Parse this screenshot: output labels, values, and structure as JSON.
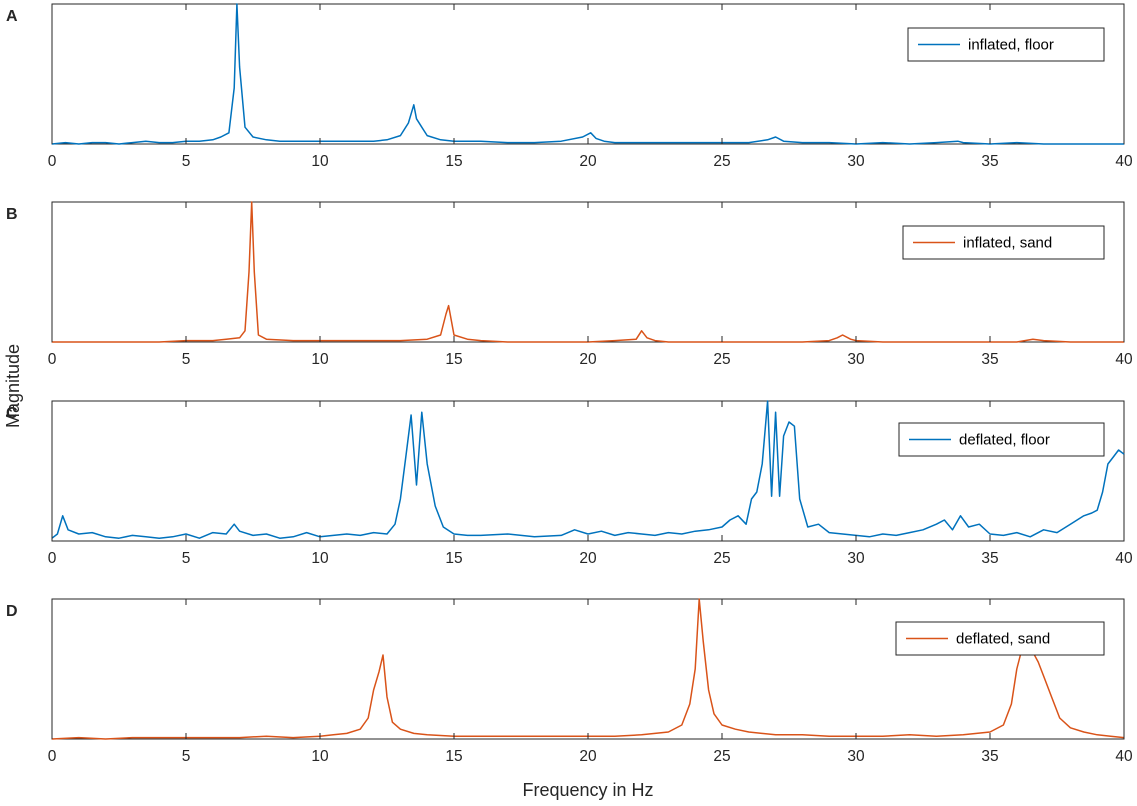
{
  "figure": {
    "xlabel": "Frequency in Hz",
    "ylabel": "Magnitude"
  },
  "chart_data": [
    {
      "type": "line",
      "panel": "A",
      "series": [
        {
          "name": "inflated, floor",
          "color": "#0072BD",
          "x": [
            0,
            0.5,
            1,
            1.5,
            2,
            2.5,
            3,
            3.5,
            4,
            4.5,
            5,
            5.5,
            6,
            6.3,
            6.6,
            6.8,
            6.9,
            7.0,
            7.2,
            7.5,
            8,
            8.5,
            9,
            10,
            11,
            12,
            12.5,
            13,
            13.3,
            13.5,
            13.6,
            13.8,
            14,
            14.5,
            15,
            16,
            17,
            18,
            19,
            19.8,
            20.1,
            20.3,
            20.6,
            21,
            22,
            23,
            24,
            25,
            26,
            26.7,
            27,
            27.3,
            28,
            29,
            30,
            31,
            32,
            33,
            33.8,
            34,
            35,
            36,
            37,
            38,
            39,
            40
          ],
          "values": [
            0.0,
            0.01,
            0.0,
            0.01,
            0.01,
            0.0,
            0.01,
            0.02,
            0.01,
            0.01,
            0.02,
            0.02,
            0.03,
            0.05,
            0.08,
            0.4,
            1.0,
            0.55,
            0.12,
            0.05,
            0.03,
            0.02,
            0.02,
            0.02,
            0.02,
            0.02,
            0.03,
            0.06,
            0.15,
            0.28,
            0.18,
            0.12,
            0.06,
            0.03,
            0.02,
            0.02,
            0.01,
            0.01,
            0.02,
            0.05,
            0.08,
            0.04,
            0.02,
            0.01,
            0.01,
            0.01,
            0.01,
            0.01,
            0.01,
            0.03,
            0.05,
            0.02,
            0.01,
            0.01,
            0.0,
            0.01,
            0.0,
            0.01,
            0.02,
            0.01,
            0.0,
            0.01,
            0.0,
            0.0,
            0.0,
            0.0
          ]
        }
      ],
      "xlim": [
        0,
        40
      ],
      "ylim": [
        0,
        1
      ],
      "xticks": [
        "0",
        "5",
        "10",
        "15",
        "20",
        "25",
        "30",
        "35",
        "40"
      ],
      "legend": "top-right"
    },
    {
      "type": "line",
      "panel": "B",
      "series": [
        {
          "name": "inflated, sand",
          "color": "#D95319",
          "x": [
            0,
            1,
            2,
            3,
            4,
            5,
            6,
            6.5,
            7,
            7.2,
            7.35,
            7.45,
            7.55,
            7.7,
            8,
            9,
            10,
            11,
            12,
            13,
            14,
            14.5,
            14.7,
            14.8,
            15,
            15.5,
            16,
            17,
            18,
            19,
            20,
            21,
            21.8,
            22,
            22.2,
            22.5,
            23,
            24,
            25,
            26,
            27,
            28,
            29,
            29.3,
            29.5,
            29.8,
            30,
            31,
            32,
            33,
            34,
            35,
            36,
            36.6,
            37,
            38,
            39,
            40
          ],
          "values": [
            0.0,
            0.0,
            0.0,
            0.0,
            0.0,
            0.01,
            0.01,
            0.02,
            0.03,
            0.08,
            0.5,
            1.0,
            0.5,
            0.05,
            0.02,
            0.01,
            0.01,
            0.01,
            0.01,
            0.01,
            0.02,
            0.05,
            0.2,
            0.26,
            0.05,
            0.02,
            0.01,
            0.0,
            0.0,
            0.0,
            0.0,
            0.01,
            0.02,
            0.08,
            0.03,
            0.01,
            0.0,
            0.0,
            0.0,
            0.0,
            0.0,
            0.0,
            0.01,
            0.03,
            0.05,
            0.02,
            0.01,
            0.0,
            0.0,
            0.0,
            0.0,
            0.0,
            0.0,
            0.02,
            0.01,
            0.0,
            0.0,
            0.0
          ]
        }
      ],
      "xlim": [
        0,
        40
      ],
      "ylim": [
        0,
        1
      ],
      "xticks": [
        "0",
        "5",
        "10",
        "15",
        "20",
        "25",
        "30",
        "35",
        "40"
      ],
      "legend": "top-right"
    },
    {
      "type": "line",
      "panel": "C",
      "series": [
        {
          "name": "deflated, floor",
          "color": "#0072BD",
          "x": [
            0,
            0.2,
            0.4,
            0.6,
            1,
            1.5,
            2,
            2.5,
            3,
            3.5,
            4,
            4.5,
            5,
            5.5,
            6,
            6.5,
            6.8,
            7,
            7.5,
            8,
            8.5,
            9,
            9.5,
            10,
            10.5,
            11,
            11.5,
            12,
            12.5,
            12.8,
            13,
            13.2,
            13.4,
            13.6,
            13.8,
            14,
            14.3,
            14.6,
            15,
            15.5,
            16,
            17,
            18,
            19,
            19.5,
            20,
            20.5,
            21,
            21.5,
            22,
            22.5,
            23,
            23.5,
            24,
            24.5,
            25,
            25.3,
            25.6,
            25.9,
            26.1,
            26.3,
            26.5,
            26.7,
            26.85,
            27.0,
            27.15,
            27.3,
            27.5,
            27.7,
            27.9,
            28.2,
            28.6,
            29,
            29.5,
            30,
            30.5,
            31,
            31.5,
            32,
            32.5,
            33,
            33.3,
            33.6,
            33.9,
            34.2,
            34.6,
            35,
            35.5,
            36,
            36.5,
            37,
            37.5,
            38,
            38.5,
            38.8,
            39.0,
            39.2,
            39.4,
            39.6,
            39.8,
            40
          ],
          "values": [
            0.02,
            0.05,
            0.18,
            0.08,
            0.05,
            0.06,
            0.03,
            0.02,
            0.04,
            0.03,
            0.02,
            0.03,
            0.05,
            0.02,
            0.06,
            0.05,
            0.12,
            0.07,
            0.04,
            0.05,
            0.02,
            0.03,
            0.06,
            0.03,
            0.04,
            0.05,
            0.04,
            0.06,
            0.05,
            0.12,
            0.3,
            0.6,
            0.9,
            0.4,
            0.92,
            0.55,
            0.25,
            0.1,
            0.05,
            0.04,
            0.04,
            0.05,
            0.03,
            0.04,
            0.08,
            0.05,
            0.07,
            0.04,
            0.06,
            0.05,
            0.04,
            0.06,
            0.05,
            0.07,
            0.08,
            0.1,
            0.15,
            0.18,
            0.12,
            0.3,
            0.35,
            0.55,
            1.0,
            0.32,
            0.92,
            0.32,
            0.75,
            0.85,
            0.82,
            0.3,
            0.1,
            0.12,
            0.06,
            0.05,
            0.04,
            0.03,
            0.05,
            0.04,
            0.06,
            0.08,
            0.12,
            0.15,
            0.08,
            0.18,
            0.1,
            0.12,
            0.05,
            0.04,
            0.06,
            0.03,
            0.08,
            0.06,
            0.12,
            0.18,
            0.2,
            0.22,
            0.35,
            0.55,
            0.6,
            0.65,
            0.62
          ]
        }
      ],
      "xlim": [
        0,
        40
      ],
      "ylim": [
        0,
        1
      ],
      "xticks": [
        "0",
        "5",
        "10",
        "15",
        "20",
        "25",
        "30",
        "35",
        "40"
      ],
      "legend": "top-right"
    },
    {
      "type": "line",
      "panel": "D",
      "series": [
        {
          "name": "deflated, sand",
          "color": "#D95319",
          "x": [
            0,
            1,
            2,
            3,
            4,
            5,
            6,
            7,
            8,
            9,
            10,
            10.5,
            11,
            11.5,
            11.8,
            12.0,
            12.2,
            12.35,
            12.5,
            12.7,
            13,
            13.5,
            14,
            15,
            16,
            17,
            18,
            19,
            20,
            21,
            22,
            22.5,
            23,
            23.5,
            23.8,
            24.0,
            24.15,
            24.3,
            24.5,
            24.7,
            25,
            25.5,
            26,
            27,
            28,
            29,
            30,
            31,
            32,
            33,
            34,
            35,
            35.5,
            35.8,
            36.0,
            36.2,
            36.4,
            36.6,
            36.8,
            37.0,
            37.3,
            37.6,
            38,
            38.5,
            39,
            39.5,
            40
          ],
          "values": [
            0.0,
            0.01,
            0.0,
            0.01,
            0.01,
            0.01,
            0.01,
            0.01,
            0.02,
            0.01,
            0.02,
            0.03,
            0.04,
            0.07,
            0.15,
            0.35,
            0.48,
            0.6,
            0.3,
            0.12,
            0.07,
            0.04,
            0.03,
            0.02,
            0.02,
            0.02,
            0.02,
            0.02,
            0.02,
            0.02,
            0.03,
            0.04,
            0.05,
            0.1,
            0.25,
            0.5,
            1.0,
            0.7,
            0.35,
            0.18,
            0.1,
            0.07,
            0.05,
            0.03,
            0.03,
            0.02,
            0.02,
            0.02,
            0.03,
            0.02,
            0.03,
            0.05,
            0.1,
            0.25,
            0.5,
            0.65,
            0.72,
            0.62,
            0.55,
            0.45,
            0.3,
            0.15,
            0.08,
            0.05,
            0.03,
            0.02,
            0.01
          ]
        }
      ],
      "xlim": [
        0,
        40
      ],
      "ylim": [
        0,
        1
      ],
      "xticks": [
        "0",
        "5",
        "10",
        "15",
        "20",
        "25",
        "30",
        "35",
        "40"
      ],
      "legend": "top-right"
    }
  ]
}
